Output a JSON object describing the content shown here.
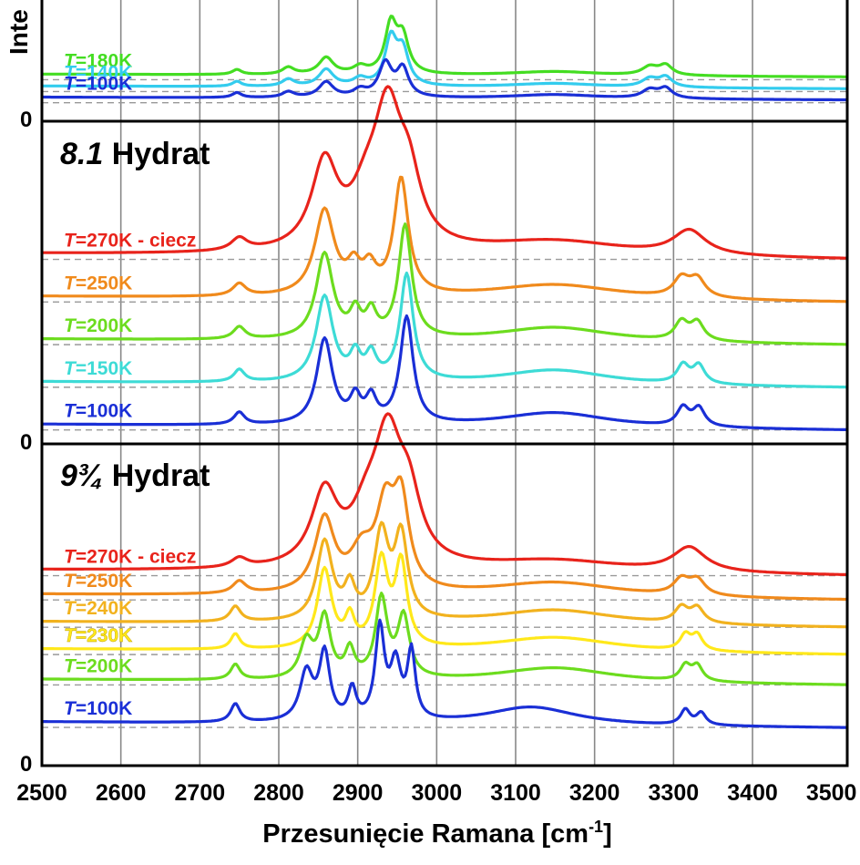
{
  "chart_data": {
    "type": "line",
    "xlabel": "Przesunięcie Ramana [cm",
    "xlabel_sup": "-1",
    "xlabel_end": "]",
    "ylabel_fragment": "Inte",
    "xlim": [
      2500,
      3520
    ],
    "xticks": [
      "2500",
      "2600",
      "2700",
      "2800",
      "2900",
      "3000",
      "3100",
      "3200",
      "3300",
      "3400",
      "3500"
    ],
    "x_gridlines": [
      2600,
      2700,
      2800,
      2900,
      3000,
      3100,
      3200,
      3300,
      3400
    ],
    "grid": "vertical",
    "panels": [
      {
        "id": "panel-top",
        "title_italic": "",
        "title_rest": "",
        "zero_label": "0",
        "curves": [
          {
            "label_T": "T",
            "label_rest": "=180K",
            "color": "#44dd22",
            "baseline": 0.285,
            "peaks": [
              [
                2747,
                0.035,
                7
              ],
              [
                2812,
                0.05,
                9
              ],
              [
                2860,
                0.12,
                11
              ],
              [
                2903,
                0.05,
                10
              ],
              [
                2942,
                0.35,
                9
              ],
              [
                2957,
                0.25,
                9
              ],
              [
                3150,
                0.03,
                70
              ],
              [
                3270,
                0.06,
                12
              ],
              [
                3290,
                0.07,
                10
              ]
            ]
          },
          {
            "label_T": "T",
            "label_rest": "=140K",
            "color": "#33ccee",
            "baseline": 0.2,
            "peaks": [
              [
                2747,
                0.035,
                7
              ],
              [
                2812,
                0.05,
                9
              ],
              [
                2860,
                0.12,
                11
              ],
              [
                2903,
                0.05,
                10
              ],
              [
                2942,
                0.33,
                9
              ],
              [
                2957,
                0.24,
                9
              ],
              [
                3150,
                0.03,
                70
              ],
              [
                3270,
                0.06,
                12
              ],
              [
                3290,
                0.07,
                10
              ]
            ]
          },
          {
            "label_T": "T",
            "label_rest": "=100K",
            "color": "#1a2fd6",
            "baseline": 0.12,
            "peaks": [
              [
                2747,
                0.035,
                7
              ],
              [
                2812,
                0.04,
                9
              ],
              [
                2860,
                0.11,
                11
              ],
              [
                2903,
                0.05,
                10
              ],
              [
                2935,
                0.24,
                10
              ],
              [
                2957,
                0.2,
                9
              ],
              [
                3150,
                0.03,
                70
              ],
              [
                3270,
                0.06,
                12
              ],
              [
                3290,
                0.07,
                10
              ]
            ]
          }
        ]
      },
      {
        "id": "panel-81",
        "title_italic": "8.1",
        "title_rest": " Hydrat",
        "zero_label": "0",
        "curves": [
          {
            "label_T": "T",
            "label_rest": "=270K - ciecz",
            "color": "#e8231b",
            "baseline": 0.6,
            "peaks": [
              [
                2750,
                0.04,
                12
              ],
              [
                2858,
                0.28,
                20
              ],
              [
                2910,
                0.12,
                22
              ],
              [
                2938,
                0.43,
                22
              ],
              [
                2965,
                0.18,
                18
              ],
              [
                3150,
                0.05,
                110
              ],
              [
                3320,
                0.08,
                25
              ]
            ]
          },
          {
            "label_T": "T",
            "label_rest": "=250K",
            "color": "#f08a1c",
            "baseline": 0.46,
            "peaks": [
              [
                2750,
                0.04,
                10
              ],
              [
                2858,
                0.28,
                15
              ],
              [
                2895,
                0.08,
                10
              ],
              [
                2915,
                0.08,
                10
              ],
              [
                2955,
                0.38,
                11
              ],
              [
                3150,
                0.05,
                100
              ],
              [
                3310,
                0.06,
                12
              ],
              [
                3330,
                0.06,
                12
              ]
            ]
          },
          {
            "label_T": "T",
            "label_rest": "=200K",
            "color": "#6cdc1e",
            "baseline": 0.32,
            "peaks": [
              [
                2750,
                0.04,
                9
              ],
              [
                2858,
                0.28,
                13
              ],
              [
                2897,
                0.08,
                8
              ],
              [
                2917,
                0.08,
                8
              ],
              [
                2960,
                0.37,
                10
              ],
              [
                3150,
                0.05,
                90
              ],
              [
                3310,
                0.06,
                10
              ],
              [
                3330,
                0.06,
                10
              ]
            ]
          },
          {
            "label_T": "T",
            "label_rest": "=150K",
            "color": "#3ddbd6",
            "baseline": 0.18,
            "peaks": [
              [
                2750,
                0.04,
                8
              ],
              [
                2858,
                0.28,
                13
              ],
              [
                2897,
                0.08,
                8
              ],
              [
                2917,
                0.08,
                8
              ],
              [
                2962,
                0.35,
                10
              ],
              [
                3150,
                0.05,
                85
              ],
              [
                3312,
                0.06,
                9
              ],
              [
                3332,
                0.06,
                9
              ]
            ]
          },
          {
            "label_T": "T",
            "label_rest": "=100K",
            "color": "#1a2fd6",
            "baseline": 0.04,
            "peaks": [
              [
                2750,
                0.04,
                8
              ],
              [
                2858,
                0.28,
                12
              ],
              [
                2897,
                0.08,
                8
              ],
              [
                2917,
                0.08,
                8
              ],
              [
                2962,
                0.35,
                10
              ],
              [
                3150,
                0.05,
                85
              ],
              [
                3312,
                0.06,
                9
              ],
              [
                3332,
                0.06,
                9
              ]
            ]
          }
        ]
      },
      {
        "id": "panel-934",
        "title_italic": "9¾",
        "title_rest": " Hydrat",
        "zero_label": "0",
        "curves": [
          {
            "label_T": "T",
            "label_rest": "=270K - ciecz",
            "color": "#e8231b",
            "baseline": 0.62,
            "peaks": [
              [
                2750,
                0.03,
                12
              ],
              [
                2858,
                0.24,
                20
              ],
              [
                2910,
                0.12,
                22
              ],
              [
                2938,
                0.4,
                22
              ],
              [
                2965,
                0.18,
                18
              ],
              [
                3150,
                0.04,
                110
              ],
              [
                3320,
                0.08,
                25
              ]
            ]
          },
          {
            "label_T": "T",
            "label_rest": "=250K",
            "color": "#f08a1c",
            "baseline": 0.54,
            "peaks": [
              [
                2750,
                0.04,
                10
              ],
              [
                2858,
                0.24,
                15
              ],
              [
                2905,
                0.12,
                18
              ],
              [
                2935,
                0.25,
                14
              ],
              [
                2955,
                0.28,
                12
              ],
              [
                3150,
                0.05,
                100
              ],
              [
                3310,
                0.05,
                12
              ],
              [
                3330,
                0.05,
                12
              ]
            ]
          },
          {
            "label_T": "T",
            "label_rest": "=240K",
            "color": "#f2b21e",
            "baseline": 0.45,
            "peaks": [
              [
                2745,
                0.05,
                8
              ],
              [
                2858,
                0.26,
                12
              ],
              [
                2890,
                0.1,
                8
              ],
              [
                2930,
                0.28,
                11
              ],
              [
                2955,
                0.27,
                10
              ],
              [
                3150,
                0.05,
                95
              ],
              [
                3310,
                0.05,
                10
              ],
              [
                3330,
                0.05,
                10
              ]
            ]
          },
          {
            "label_T": "T",
            "label_rest": "=230K",
            "color": "#ffe81a",
            "baseline": 0.36,
            "peaks": [
              [
                2745,
                0.05,
                7
              ],
              [
                2858,
                0.26,
                11
              ],
              [
                2890,
                0.09,
                7
              ],
              [
                2930,
                0.28,
                10
              ],
              [
                2955,
                0.27,
                9
              ],
              [
                3150,
                0.05,
                95
              ],
              [
                3315,
                0.05,
                8
              ],
              [
                3330,
                0.05,
                8
              ]
            ]
          },
          {
            "label_T": "T",
            "label_rest": "=200K",
            "color": "#6cdc1e",
            "baseline": 0.26,
            "peaks": [
              [
                2745,
                0.05,
                7
              ],
              [
                2835,
                0.12,
                10
              ],
              [
                2858,
                0.2,
                9
              ],
              [
                2890,
                0.09,
                7
              ],
              [
                2930,
                0.26,
                9
              ],
              [
                2958,
                0.2,
                9
              ],
              [
                3150,
                0.05,
                90
              ],
              [
                3315,
                0.05,
                8
              ],
              [
                3330,
                0.05,
                8
              ]
            ]
          },
          {
            "label_T": "T",
            "label_rest": "=100K",
            "color": "#1a2fd6",
            "baseline": 0.12,
            "peaks": [
              [
                2745,
                0.06,
                7
              ],
              [
                2835,
                0.16,
                10
              ],
              [
                2858,
                0.22,
                8
              ],
              [
                2893,
                0.1,
                6
              ],
              [
                2928,
                0.3,
                7
              ],
              [
                2948,
                0.18,
                8
              ],
              [
                2968,
                0.22,
                6
              ],
              [
                3120,
                0.06,
                70
              ],
              [
                3315,
                0.05,
                7
              ],
              [
                3335,
                0.04,
                7
              ]
            ]
          }
        ]
      }
    ]
  }
}
